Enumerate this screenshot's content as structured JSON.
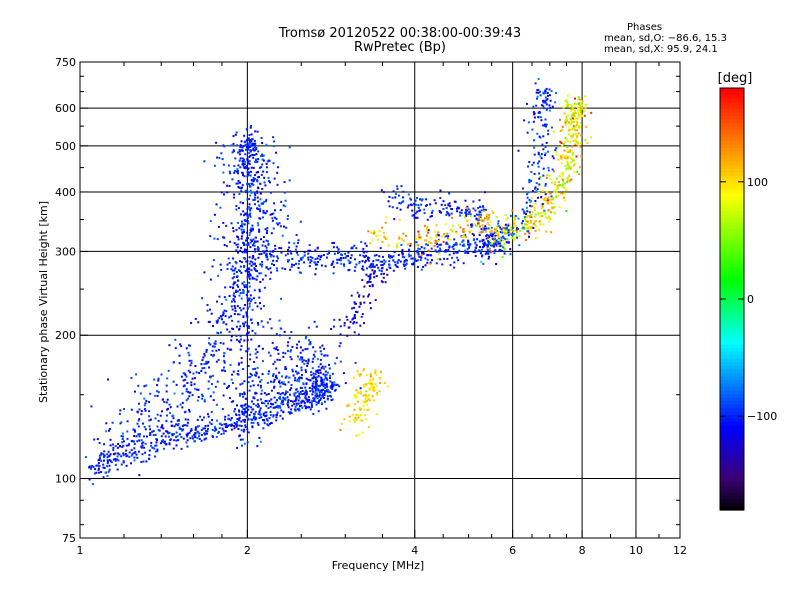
{
  "chart_data": {
    "type": "scatter",
    "title": "Tromsø 20120522 00:38:00-00:39:43",
    "subtitle": "RwPretec (Bp)",
    "xlabel": "Frequency [MHz]",
    "ylabel": "Stationary phase Virtual Height [km]",
    "xscale": "log",
    "yscale": "log",
    "xlim": [
      1,
      12
    ],
    "ylim": [
      75,
      750
    ],
    "x_ticks": [
      1,
      2,
      4,
      6,
      8,
      10,
      12
    ],
    "x_tick_labels": [
      "1",
      "2",
      "4",
      "6",
      "8",
      "10",
      "12"
    ],
    "y_ticks": [
      75,
      100,
      200,
      300,
      400,
      500,
      600,
      750
    ],
    "y_tick_labels": [
      "75",
      "100",
      "200",
      "300",
      "400",
      "500",
      "600",
      "750"
    ],
    "grid": true,
    "info_box": {
      "heading": "Phases",
      "line1": "mean, sd,O: −86.6, 15.3",
      "line2": "mean, sd,X:  95.9, 24.1"
    },
    "colorbar": {
      "label": "[deg]",
      "range": [
        -180,
        180
      ],
      "ticks": [
        100,
        0,
        -100
      ],
      "tick_labels": [
        "100",
        "0",
        "−100"
      ],
      "colormap": "rainbow"
    },
    "traces": [
      {
        "id": "low-F-rise",
        "phase_mean": -100,
        "phase_sd": 12,
        "density": "high",
        "points": [
          [
            1.05,
            105
          ],
          [
            1.15,
            112
          ],
          [
            1.3,
            118
          ],
          [
            1.45,
            122
          ],
          [
            1.6,
            125
          ],
          [
            1.8,
            128
          ],
          [
            1.95,
            132
          ],
          [
            2.1,
            136
          ],
          [
            2.3,
            142
          ],
          [
            2.5,
            148
          ],
          [
            2.7,
            152
          ],
          [
            2.75,
            158
          ]
        ]
      },
      {
        "id": "spread-cloud",
        "phase_mean": -100,
        "phase_sd": 12,
        "density": "cloud",
        "points": [
          [
            1.1,
            112
          ],
          [
            1.3,
            135
          ],
          [
            1.5,
            150
          ],
          [
            1.7,
            170
          ],
          [
            1.85,
            200
          ],
          [
            1.95,
            240
          ],
          [
            2.0,
            280
          ],
          [
            2.05,
            330
          ],
          [
            2.1,
            380
          ],
          [
            2.0,
            450
          ],
          [
            2.05,
            480
          ],
          [
            1.9,
            150
          ],
          [
            2.3,
            160
          ],
          [
            2.5,
            165
          ],
          [
            2.6,
            175
          ]
        ]
      },
      {
        "id": "column-2MHz",
        "phase_mean": -100,
        "phase_sd": 10,
        "density": "high",
        "points": [
          [
            2.0,
            120
          ],
          [
            2.0,
            200
          ],
          [
            2.0,
            300
          ],
          [
            2.0,
            400
          ],
          [
            2.02,
            500
          ]
        ]
      },
      {
        "id": "F-layer-band",
        "phase_mean": -100,
        "phase_sd": 12,
        "density": "high",
        "points": [
          [
            2.05,
            290
          ],
          [
            2.4,
            290
          ],
          [
            2.8,
            292
          ],
          [
            3.2,
            288
          ],
          [
            3.6,
            285
          ],
          [
            4.0,
            295
          ],
          [
            4.5,
            300
          ],
          [
            5.0,
            305
          ],
          [
            5.5,
            318
          ]
        ]
      },
      {
        "id": "upper-band",
        "phase_mean": -100,
        "phase_sd": 12,
        "density": "medium",
        "points": [
          [
            3.6,
            400
          ],
          [
            3.9,
            375
          ],
          [
            4.3,
            370
          ],
          [
            4.7,
            365
          ],
          [
            5.2,
            360
          ]
        ]
      },
      {
        "id": "x-mode-branch",
        "phase_mean": 110,
        "phase_sd": 25,
        "density": "medium",
        "points": [
          [
            3.3,
            330
          ],
          [
            3.8,
            320
          ],
          [
            4.3,
            310
          ],
          [
            4.8,
            335
          ],
          [
            5.4,
            345
          ]
        ]
      },
      {
        "id": "high-F-rise",
        "phase_mean": 95,
        "phase_sd": 30,
        "density": "high",
        "points": [
          [
            5.5,
            320
          ],
          [
            6.0,
            330
          ],
          [
            6.5,
            345
          ],
          [
            7.0,
            380
          ],
          [
            7.4,
            420
          ],
          [
            7.6,
            480
          ],
          [
            7.7,
            540
          ],
          [
            7.8,
            600
          ]
        ]
      },
      {
        "id": "high-F-O",
        "phase_mean": -95,
        "phase_sd": 15,
        "density": "medium",
        "points": [
          [
            5.2,
            300
          ],
          [
            5.8,
            320
          ],
          [
            6.3,
            350
          ],
          [
            6.6,
            400
          ],
          [
            6.7,
            480
          ],
          [
            6.75,
            560
          ],
          [
            6.8,
            630
          ]
        ]
      },
      {
        "id": "low-E-blob",
        "phase_mean": 100,
        "phase_sd": 15,
        "density": "medium",
        "points": [
          [
            3.1,
            130
          ],
          [
            3.2,
            140
          ],
          [
            3.3,
            150
          ],
          [
            3.35,
            160
          ]
        ]
      },
      {
        "id": "mid-column",
        "phase_mean": -120,
        "phase_sd": 15,
        "density": "low",
        "points": [
          [
            3.0,
            200
          ],
          [
            3.1,
            215
          ],
          [
            3.2,
            230
          ],
          [
            3.3,
            250
          ],
          [
            3.4,
            270
          ]
        ]
      }
    ]
  }
}
